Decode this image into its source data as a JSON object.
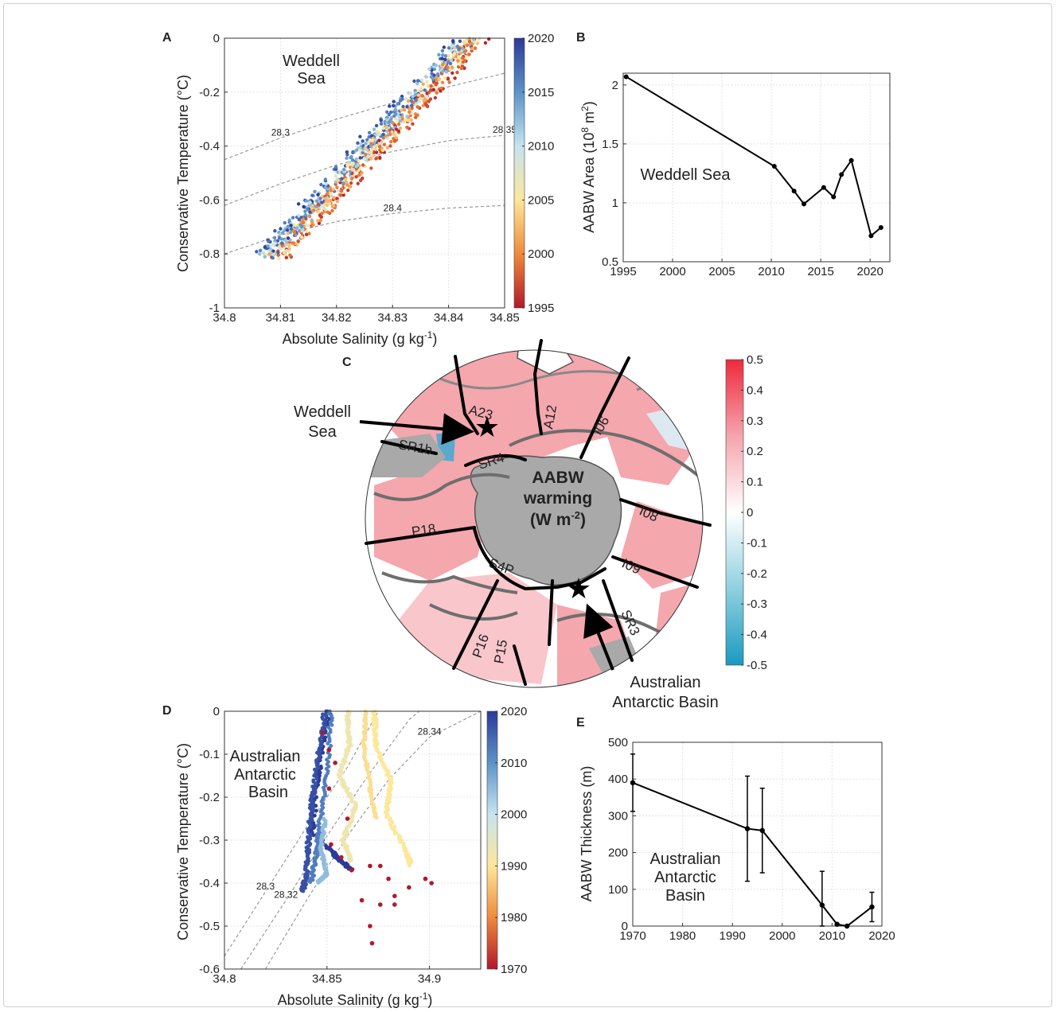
{
  "panel_labels": {
    "a": "A",
    "b": "B",
    "c": "C",
    "d": "D",
    "e": "E"
  },
  "colors": {
    "red": "#b2182b",
    "blue": "#2b3a98",
    "map_positive": "#f4a7ad",
    "map_negative": "#dde8f0",
    "land": "#a9a9a9",
    "line": "#111111"
  },
  "chart_data": [
    {
      "id": "A",
      "type": "scatter",
      "title": "",
      "annotation": [
        "Weddell",
        "Sea"
      ],
      "xlabel": "Absolute Salinity (g kg",
      "xlabel_sup": "-1",
      "xlabel_end": ")",
      "ylabel": "Conservative Temperature (°C)",
      "xlim": [
        34.8,
        34.85
      ],
      "ylim": [
        -1,
        0
      ],
      "xticks": [
        "34.8",
        "34.81",
        "34.82",
        "34.83",
        "34.84",
        "34.85"
      ],
      "yticks": [
        "0",
        "-0.2",
        "-0.4",
        "-0.6",
        "-0.8",
        "-1"
      ],
      "grid": true,
      "colorbar": {
        "min": 1995,
        "max": 2020,
        "ticks": [
          "2020",
          "2015",
          "2010",
          "2005",
          "2000",
          "1995"
        ]
      },
      "isopycnals": [
        {
          "label": "28.3",
          "points": [
            [
              34.8,
              -0.45
            ],
            [
              34.81,
              -0.37
            ],
            [
              34.82,
              -0.3
            ],
            [
              34.83,
              -0.24
            ],
            [
              34.84,
              -0.18
            ],
            [
              34.85,
              -0.13
            ]
          ]
        },
        {
          "label": "28.35",
          "points": [
            [
              34.8,
              -0.62
            ],
            [
              34.81,
              -0.54
            ],
            [
              34.82,
              -0.47
            ],
            [
              34.83,
              -0.42
            ],
            [
              34.84,
              -0.38
            ],
            [
              34.85,
              -0.36
            ]
          ]
        },
        {
          "label": "28.4",
          "points": [
            [
              34.8,
              -0.8
            ],
            [
              34.81,
              -0.73
            ],
            [
              34.82,
              -0.68
            ],
            [
              34.83,
              -0.65
            ],
            [
              34.84,
              -0.63
            ],
            [
              34.85,
              -0.62
            ]
          ]
        }
      ],
      "series_trend": {
        "x_start": 34.809,
        "y_start": -0.8,
        "x_end": 34.844,
        "y_end": 0,
        "spread_salinity": 0.004,
        "n": 900
      }
    },
    {
      "id": "B",
      "type": "line",
      "title": "",
      "annotation": "Weddell Sea",
      "xlabel": "",
      "ylabel": "AABW Area (10",
      "ylabel_sup": "8",
      "ylabel_mid": " m",
      "ylabel_sup2": "2",
      "ylabel_end": ")",
      "xlim": [
        1995,
        2022
      ],
      "ylim": [
        0.5,
        2.1
      ],
      "xticks": [
        "1995",
        "2000",
        "2005",
        "2010",
        "2015",
        "2020"
      ],
      "yticks": [
        "0.5",
        "1",
        "1.5",
        "2"
      ],
      "grid": true,
      "x": [
        1995.3,
        2010.3,
        2012.3,
        2013.3,
        2015.3,
        2016.3,
        2017.1,
        2018.1,
        2020.1,
        2021.1
      ],
      "y": [
        2.07,
        1.31,
        1.1,
        0.99,
        1.13,
        1.05,
        1.24,
        1.36,
        0.72,
        0.79
      ]
    },
    {
      "id": "C",
      "type": "map",
      "title": "",
      "center_title": [
        "AABW",
        "warming",
        "(W m"
      ],
      "center_sup": "-2",
      "center_end": ")",
      "colorbar": {
        "min": -0.5,
        "max": 0.5,
        "ticks": [
          "0.5",
          "0.4",
          "0.3",
          "0.2",
          "0.1",
          "0",
          "-0.1",
          "-0.2",
          "-0.3",
          "-0.4",
          "-0.5"
        ]
      },
      "sections": [
        "A23",
        "A12",
        "I06",
        "SR1b",
        "SR4",
        "I08",
        "P18",
        "S4P",
        "I09",
        "P16",
        "P15",
        "SR3"
      ],
      "annotations": {
        "weddell": [
          "Weddell",
          "Sea"
        ],
        "australian": [
          "Australian",
          "Antarctic Basin"
        ]
      }
    },
    {
      "id": "D",
      "type": "scatter",
      "title": "",
      "annotation": [
        "Australian",
        "Antarctic",
        "Basin"
      ],
      "xlabel": "Absolute Salinity (g kg",
      "xlabel_sup": "-1",
      "xlabel_end": ")",
      "ylabel": "Conservative Temperature (°C)",
      "xlim": [
        34.8,
        34.925
      ],
      "ylim": [
        -0.6,
        0
      ],
      "xticks": [
        "34.8",
        "34.85",
        "34.9"
      ],
      "yticks": [
        "0",
        "-0.1",
        "-0.2",
        "-0.3",
        "-0.4",
        "-0.5",
        "-0.6"
      ],
      "grid": true,
      "colorbar": {
        "min": 1970,
        "max": 2020,
        "ticks": [
          "2020",
          "2010",
          "2000",
          "1990",
          "1980",
          "1970"
        ]
      },
      "isopycnals": [
        {
          "label": "28.3",
          "points": [
            [
              34.8,
              -0.57
            ],
            [
              34.82,
              -0.42
            ],
            [
              34.84,
              -0.27
            ],
            [
              34.86,
              -0.13
            ],
            [
              34.875,
              0
            ]
          ]
        },
        {
          "label": "28.32",
          "points": [
            [
              34.808,
              -0.6
            ],
            [
              34.83,
              -0.44
            ],
            [
              34.85,
              -0.29
            ],
            [
              34.87,
              -0.15
            ],
            [
              34.89,
              -0.02
            ],
            [
              34.895,
              0
            ]
          ]
        },
        {
          "label": "28.34",
          "points": [
            [
              34.82,
              -0.6
            ],
            [
              34.84,
              -0.44
            ],
            [
              34.86,
              -0.29
            ],
            [
              34.88,
              -0.16
            ],
            [
              34.9,
              -0.06
            ],
            [
              34.925,
              0
            ]
          ]
        }
      ],
      "red_points": [
        [
          34.848,
          -0.05
        ],
        [
          34.851,
          -0.09
        ],
        [
          34.854,
          -0.12
        ],
        [
          34.851,
          -0.18
        ],
        [
          34.86,
          -0.25
        ],
        [
          34.852,
          -0.31
        ],
        [
          34.857,
          -0.34
        ],
        [
          34.862,
          -0.37
        ],
        [
          34.871,
          -0.36
        ],
        [
          34.876,
          -0.36
        ],
        [
          34.88,
          -0.39
        ],
        [
          34.883,
          -0.43
        ],
        [
          34.898,
          -0.39
        ],
        [
          34.901,
          -0.4
        ],
        [
          34.89,
          -0.41
        ],
        [
          34.867,
          -0.44
        ],
        [
          34.883,
          -0.45
        ],
        [
          34.876,
          -0.45
        ],
        [
          34.871,
          -0.5
        ],
        [
          34.872,
          -0.54
        ]
      ]
    },
    {
      "id": "E",
      "type": "line",
      "title": "",
      "annotation": [
        "Australian",
        "Antarctic",
        "Basin"
      ],
      "xlabel": "",
      "ylabel": "AABW Thickness (m)",
      "xlim": [
        1970,
        2020
      ],
      "ylim": [
        0,
        500
      ],
      "xticks": [
        "1970",
        "1980",
        "1990",
        "2000",
        "2010",
        "2020"
      ],
      "yticks": [
        "0",
        "100",
        "200",
        "300",
        "400",
        "500"
      ],
      "grid": true,
      "x": [
        1970,
        1993,
        1996,
        2008,
        2011,
        2013,
        2018
      ],
      "y": [
        390,
        265,
        260,
        57,
        5,
        0,
        52
      ],
      "error": [
        78,
        143,
        115,
        92,
        0,
        0,
        40
      ]
    }
  ]
}
